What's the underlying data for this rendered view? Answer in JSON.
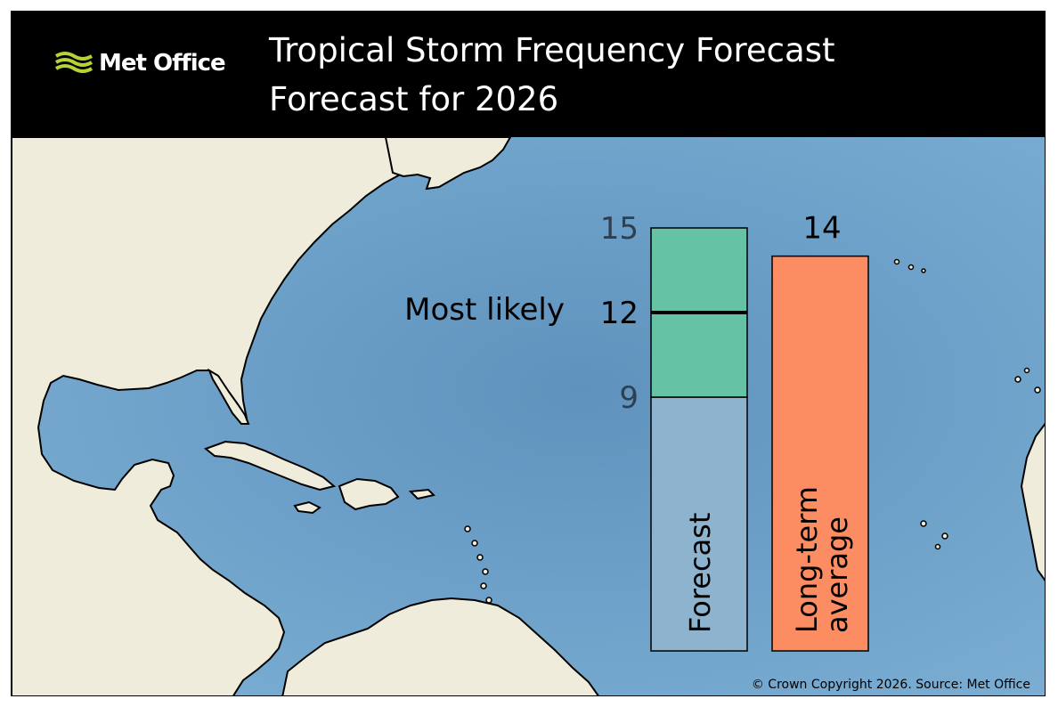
{
  "header": {
    "logo_text": "Met Office",
    "title": "Tropical Storm Frequency Forecast",
    "subtitle": "Forecast for 2026"
  },
  "colors": {
    "header_bg": "#000000",
    "ocean": "#6a9fc6",
    "land": "#efecdb",
    "forecast_range": "#66c2a5",
    "forecast_bar": "#8eb3cf",
    "average_bar": "#fc8d62",
    "logo_green": "#b5d334"
  },
  "chart_data": {
    "type": "bar",
    "categories": [
      "Forecast",
      "Long-term average"
    ],
    "forecast": {
      "label": "Forecast",
      "low": 9,
      "high": 15,
      "most_likely": 12
    },
    "average": {
      "label_lines": [
        "Long-term",
        "average"
      ],
      "value": 14
    },
    "most_likely_label": "Most likely",
    "tick_labels": {
      "low": "9",
      "high": "15",
      "most_likely": "12",
      "average": "14"
    }
  },
  "footer": {
    "copyright": "© Crown Copyright 2026. Source: Met Office"
  }
}
